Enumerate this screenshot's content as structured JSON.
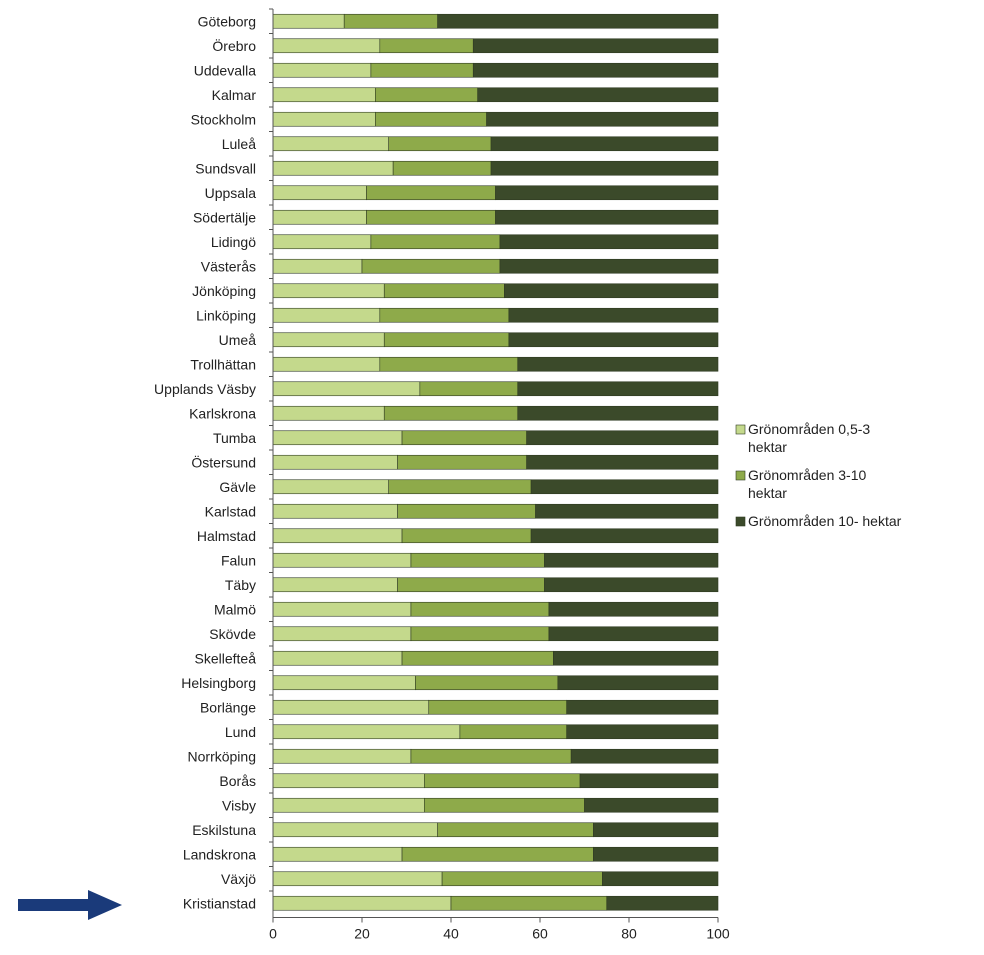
{
  "chart_data": {
    "type": "bar",
    "orientation": "horizontal",
    "stacked": true,
    "categories": [
      "Göteborg",
      "Örebro",
      "Uddevalla",
      "Kalmar",
      "Stockholm",
      "Luleå",
      "Sundsvall",
      "Uppsala",
      "Södertälje",
      "Lidingö",
      "Västerås",
      "Jönköping",
      "Linköping",
      "Umeå",
      "Trollhättan",
      "Upplands Väsby",
      "Karlskrona",
      "Tumba",
      "Östersund",
      "Gävle",
      "Karlstad",
      "Halmstad",
      "Falun",
      "Täby",
      "Malmö",
      "Skövde",
      "Skellefteå",
      "Helsingborg",
      "Borlänge",
      "Lund",
      "Norrköping",
      "Borås",
      "Visby",
      "Eskilstuna",
      "Landskrona",
      "Växjö",
      "Kristianstad"
    ],
    "series": [
      {
        "name": "Grönområden 0,5-3 hektar",
        "color": "#c4d98c",
        "values": [
          16,
          24,
          22,
          23,
          23,
          26,
          27,
          21,
          21,
          22,
          20,
          25,
          24,
          25,
          24,
          33,
          25,
          29,
          28,
          26,
          28,
          29,
          31,
          28,
          31,
          31,
          29,
          32,
          35,
          42,
          31,
          34,
          34,
          37,
          29,
          38,
          40
        ]
      },
      {
        "name": "Grönområden 3-10 hektar",
        "color": "#8eaa4a",
        "values": [
          21,
          21,
          23,
          23,
          25,
          23,
          22,
          29,
          29,
          29,
          31,
          27,
          29,
          28,
          31,
          22,
          30,
          28,
          29,
          32,
          31,
          29,
          30,
          33,
          31,
          31,
          34,
          32,
          31,
          24,
          36,
          35,
          36,
          35,
          43,
          36,
          35
        ]
      },
      {
        "name": "Grönområden 10- hektar",
        "color": "#3b4a2a",
        "values": [
          63,
          55,
          55,
          54,
          52,
          51,
          51,
          50,
          50,
          49,
          49,
          48,
          47,
          47,
          45,
          45,
          45,
          43,
          43,
          42,
          41,
          42,
          39,
          39,
          38,
          38,
          37,
          36,
          34,
          34,
          33,
          31,
          30,
          28,
          28,
          26,
          25
        ]
      }
    ],
    "xlim": [
      0,
      100
    ],
    "xticks": [
      0,
      20,
      40,
      60,
      80,
      100
    ],
    "legend_position": "right",
    "annotation": "arrow-pointing-to-Kristianstad"
  }
}
